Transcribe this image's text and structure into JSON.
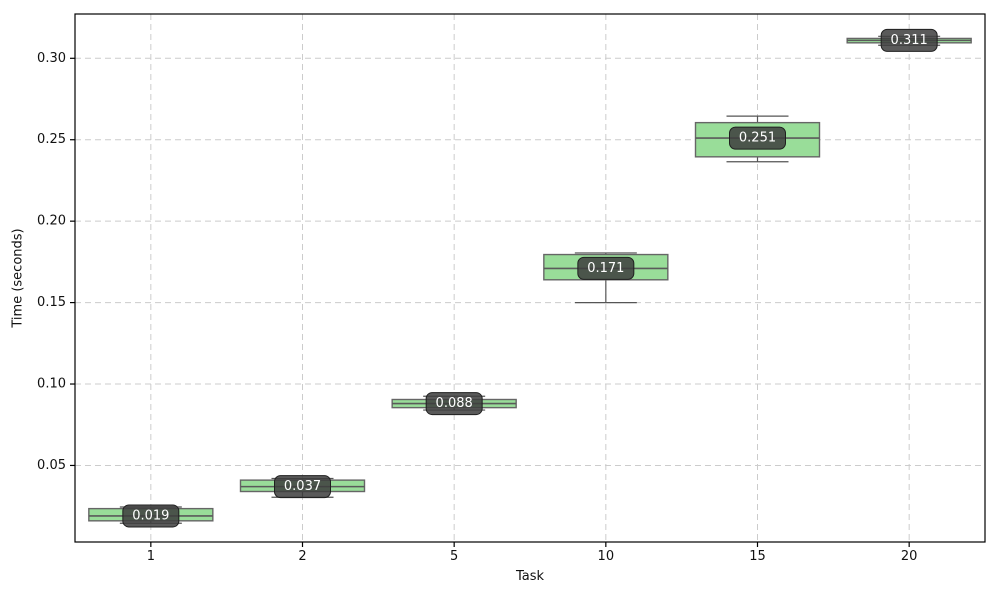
{
  "chart_data": {
    "type": "boxplot",
    "title": "",
    "xlabel": "Task",
    "ylabel": "Time (seconds)",
    "categories": [
      "1",
      "2",
      "5",
      "10",
      "15",
      "20"
    ],
    "y_ticks": [
      {
        "value": 0.05,
        "label": "0.05"
      },
      {
        "value": 0.1,
        "label": "0.10"
      },
      {
        "value": 0.15,
        "label": "0.15"
      },
      {
        "value": 0.2,
        "label": "0.20"
      },
      {
        "value": 0.25,
        "label": "0.25"
      },
      {
        "value": 0.3,
        "label": "0.30"
      }
    ],
    "ylim": [
      0.003,
      0.3272
    ],
    "grid": true,
    "legend": "none",
    "boxes": [
      {
        "category": "1",
        "annotation": "0.019",
        "median": 0.019,
        "q1": 0.016,
        "q3": 0.0235,
        "whisker_low": 0.0145,
        "whisker_high": 0.0245
      },
      {
        "category": "2",
        "annotation": "0.037",
        "median": 0.037,
        "q1": 0.034,
        "q3": 0.041,
        "whisker_low": 0.0305,
        "whisker_high": 0.042
      },
      {
        "category": "5",
        "annotation": "0.088",
        "median": 0.088,
        "q1": 0.0855,
        "q3": 0.0905,
        "whisker_low": 0.084,
        "whisker_high": 0.0925
      },
      {
        "category": "10",
        "annotation": "0.171",
        "median": 0.171,
        "q1": 0.164,
        "q3": 0.1795,
        "whisker_low": 0.15,
        "whisker_high": 0.1805
      },
      {
        "category": "15",
        "annotation": "0.251",
        "median": 0.251,
        "q1": 0.2395,
        "q3": 0.2605,
        "whisker_low": 0.2365,
        "whisker_high": 0.2645
      },
      {
        "category": "20",
        "annotation": "0.311",
        "median": 0.311,
        "q1": 0.3095,
        "q3": 0.3122,
        "whisker_low": 0.308,
        "whisker_high": 0.3135
      }
    ],
    "colors": {
      "box_fill": "#99dd99",
      "box_edge": "#666666",
      "median_line": "#5a5a5a",
      "whisker": "#555555",
      "grid": "#cccccc",
      "spine": "#000000",
      "tick_text": "#111111",
      "annotation_bg": "#3d3d3d",
      "annotation_border": "#1f1f1f",
      "annotation_text": "#ffffff"
    }
  }
}
